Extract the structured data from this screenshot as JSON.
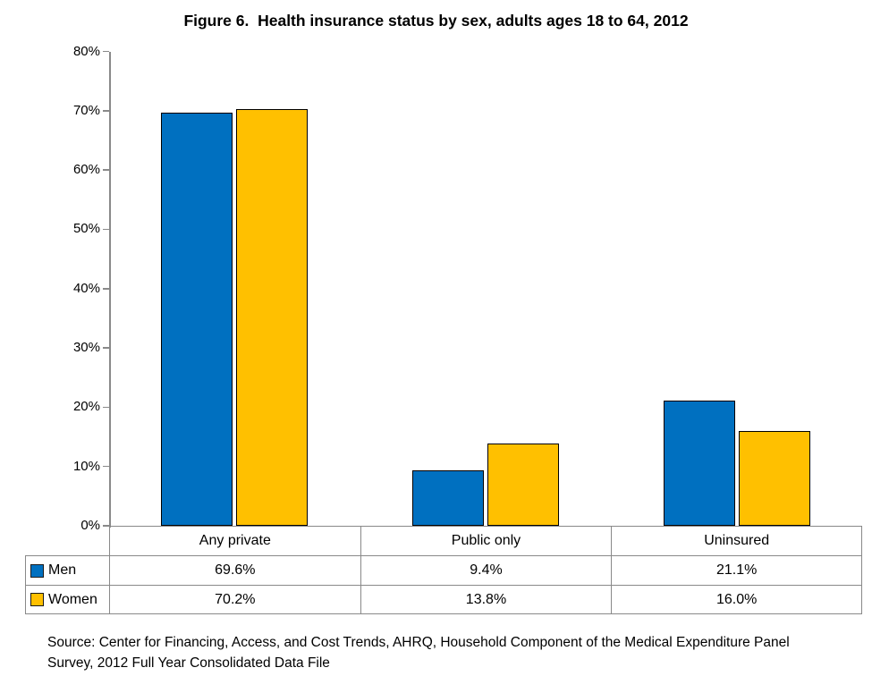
{
  "title": "Figure 6.  Health insurance status by sex, adults ages 18 to 64, 2012",
  "chart_data": {
    "type": "bar",
    "categories": [
      "Any private",
      "Public only",
      "Uninsured"
    ],
    "series": [
      {
        "name": "Men",
        "color": "#0070C0",
        "values": [
          69.6,
          9.4,
          21.1
        ],
        "value_labels": [
          "69.6%",
          "9.4%",
          "21.1%"
        ]
      },
      {
        "name": "Women",
        "color": "#FFC000",
        "values": [
          70.2,
          13.8,
          16.0
        ],
        "value_labels": [
          "70.2%",
          "13.8%",
          "16.0%"
        ]
      }
    ],
    "xlabel": "",
    "ylabel": "",
    "ylim": [
      0,
      80
    ],
    "y_tick_step": 10,
    "y_tick_labels": [
      "0%",
      "10%",
      "20%",
      "30%",
      "40%",
      "50%",
      "60%",
      "70%",
      "80%"
    ],
    "grid": false,
    "legend_position": "left-column-of-data-table"
  },
  "source_note": {
    "line1": "Source: Center for Financing, Access, and Cost Trends, AHRQ, Household Component of the Medical Expenditure Panel",
    "line2": "Survey, 2012 Full Year Consolidated Data File"
  },
  "colors": {
    "men_bar": "#0070C0",
    "women_bar": "#FFC000",
    "bar_border": "#000000",
    "axis_line": "#898989",
    "table_border": "#898989",
    "text": "#000000"
  }
}
